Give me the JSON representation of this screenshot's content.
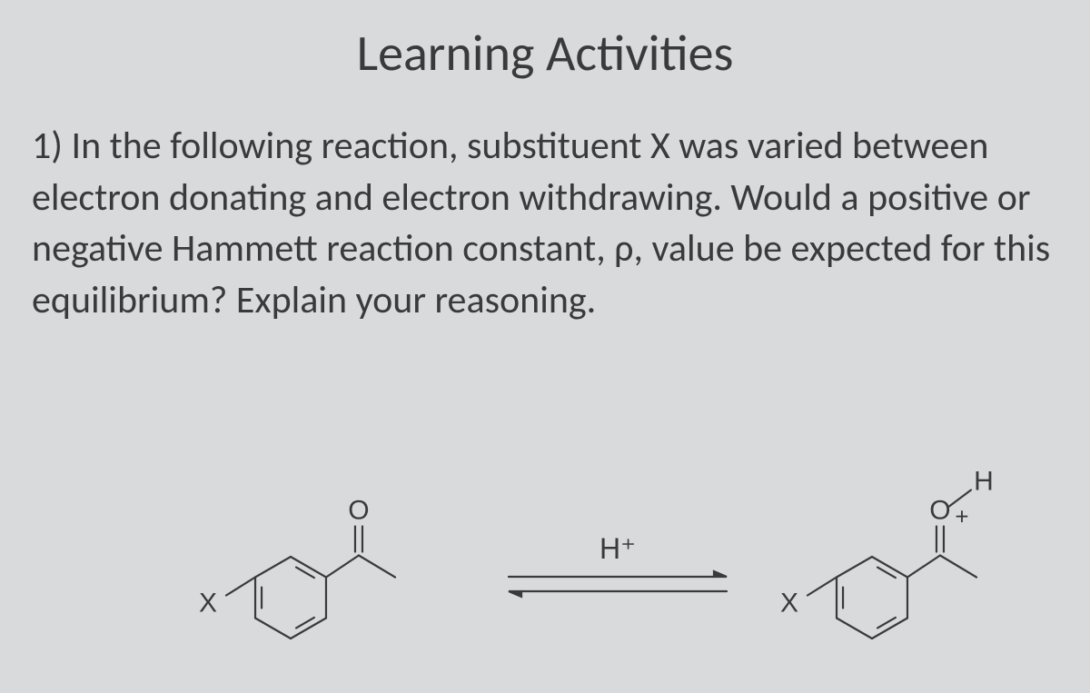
{
  "slide": {
    "title": "Learning Activities",
    "question_text": "1) In the following reaction, substituent X was varied between electron donating and electron withdrawing. Would a positive or negative Hammett reaction constant, ρ,  value be expected for this equilibrium? Explain your reasoning.",
    "background_color": "#d8dadb",
    "text_color": "#3a3a3a",
    "title_fontsize": 56,
    "body_fontsize": 42
  },
  "reaction": {
    "type": "chemical_equilibrium",
    "reagent_label": "H⁺",
    "left_structure": {
      "description": "para-substituted acetophenone",
      "ring_substituent": "X",
      "carbonyl_oxygen": "O",
      "methyl": true
    },
    "right_structure": {
      "description": "protonated carbonyl oxocarbenium",
      "ring_substituent": "X",
      "oxygen_label": "O",
      "hydrogen_label": "H",
      "charge": "+",
      "methyl": true
    },
    "stroke_color": "#3a3a3a",
    "stroke_width": 2.2,
    "label_fontsize": 30,
    "reagent_fontsize": 32
  }
}
